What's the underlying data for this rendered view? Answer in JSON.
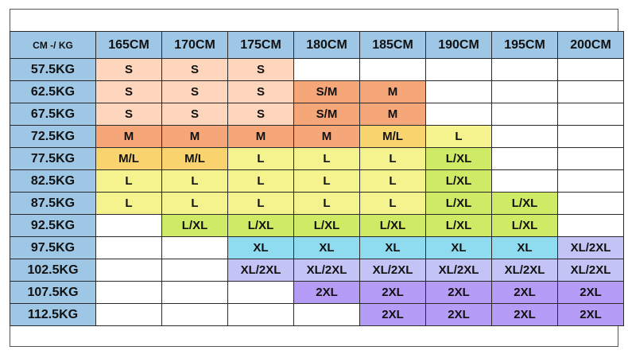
{
  "corner_label": "CM -/ KG",
  "heights": [
    "165CM",
    "170CM",
    "175CM",
    "180CM",
    "185CM",
    "190CM",
    "195CM",
    "200CM"
  ],
  "rows": [
    {
      "weight": "57.5KG",
      "sizes": [
        "S",
        "S",
        "S",
        "",
        "",
        "",
        "",
        ""
      ]
    },
    {
      "weight": "62.5KG",
      "sizes": [
        "S",
        "S",
        "S",
        "S/M",
        "M",
        "",
        "",
        ""
      ]
    },
    {
      "weight": "67.5KG",
      "sizes": [
        "S",
        "S",
        "S",
        "S/M",
        "M",
        "",
        "",
        ""
      ]
    },
    {
      "weight": "72.5KG",
      "sizes": [
        "M",
        "M",
        "M",
        "M",
        "M/L",
        "L",
        "",
        ""
      ]
    },
    {
      "weight": "77.5KG",
      "sizes": [
        "M/L",
        "M/L",
        "L",
        "L",
        "L",
        "L/XL",
        "",
        ""
      ]
    },
    {
      "weight": "82.5KG",
      "sizes": [
        "L",
        "L",
        "L",
        "L",
        "L",
        "L/XL",
        "",
        ""
      ]
    },
    {
      "weight": "87.5KG",
      "sizes": [
        "L",
        "L",
        "L",
        "L",
        "L",
        "L/XL",
        "L/XL",
        ""
      ]
    },
    {
      "weight": "92.5KG",
      "sizes": [
        "",
        "L/XL",
        "L/XL",
        "L/XL",
        "L/XL",
        "L/XL",
        "L/XL",
        ""
      ]
    },
    {
      "weight": "97.5KG",
      "sizes": [
        "",
        "",
        "XL",
        "XL",
        "XL",
        "XL",
        "XL",
        "XL/2XL"
      ]
    },
    {
      "weight": "102.5KG",
      "sizes": [
        "",
        "",
        "XL/2XL",
        "XL/2XL",
        "XL/2XL",
        "XL/2XL",
        "XL/2XL",
        "XL/2XL"
      ]
    },
    {
      "weight": "107.5KG",
      "sizes": [
        "",
        "",
        "",
        "2XL",
        "2XL",
        "2XL",
        "2XL",
        "2XL"
      ]
    },
    {
      "weight": "112.5KG",
      "sizes": [
        "",
        "",
        "",
        "",
        "2XL",
        "2XL",
        "2XL",
        "2XL"
      ]
    }
  ],
  "size_colors": {
    "S": "#fdd6bd",
    "S/M": "#f5a77a",
    "M": "#f5a77a",
    "M/L": "#f9d46e",
    "L": "#f5f38e",
    "L/XL": "#cfeb66",
    "XL": "#8fdcf0",
    "XL/2XL": "#c4c3f6",
    "2XL": "#b59cf6"
  },
  "header_color": "#9ec7e6"
}
